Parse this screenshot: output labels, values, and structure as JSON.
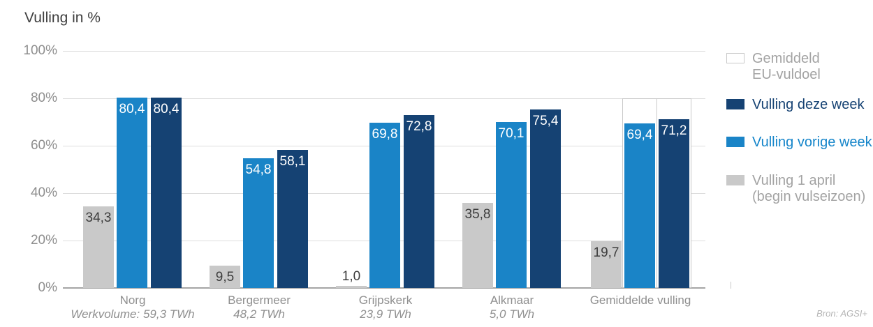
{
  "title": "Vulling in %",
  "source": "Bron: AGSI+",
  "colors": {
    "background": "#ffffff",
    "title_text": "#3f3f3f",
    "grid": "#dcdcdc",
    "baseline": "#a5a5a5",
    "axis_label": "#8e8e8e",
    "category_label": "#8f8f8f",
    "legend_gray_text": "#a3a3a3",
    "eu_goal_border": "#c9c9c9",
    "source_text": "#b5b5b5"
  },
  "legend": {
    "items": [
      {
        "id": "eu-goal",
        "label": "Gemiddeld EU-vuldoel",
        "label_lines": [
          "Gemiddeld",
          "EU-vuldoel"
        ],
        "swatch": "outline",
        "swatch_border": "#c9c9c9",
        "text_color": "#a3a3a3"
      },
      {
        "id": "deze-week",
        "label": "Vulling deze week",
        "label_lines": [
          "Vulling deze week"
        ],
        "swatch": "#154273",
        "text_color": "#154273"
      },
      {
        "id": "vorige-week",
        "label": "Vulling vorige week",
        "label_lines": [
          "Vulling vorige week"
        ],
        "swatch": "#1a84c7",
        "text_color": "#1585ca"
      },
      {
        "id": "april",
        "label": "Vulling 1 april (begin vulseizoen)",
        "label_lines": [
          "Vulling 1 april",
          "(begin vulseizoen)"
        ],
        "swatch": "#c9c9c9",
        "text_color": "#a3a3a3"
      }
    ]
  },
  "chart_data": {
    "type": "bar",
    "title": "Vulling in %",
    "ylabel": "Vulling in %",
    "xlabel": "",
    "ylim": [
      0,
      100
    ],
    "yticks": [
      {
        "label": "0%",
        "value": 0
      },
      {
        "label": "20%",
        "value": 20
      },
      {
        "label": "40%",
        "value": 40
      },
      {
        "label": "60%",
        "value": 60
      },
      {
        "label": "80%",
        "value": 80
      },
      {
        "label": "100%",
        "value": 100
      }
    ],
    "grid": true,
    "legend_position": "right",
    "categories": [
      "Norg",
      "Bergermeer",
      "Grijpskerk",
      "Alkmaar",
      "Gemiddelde vulling"
    ],
    "category_subtitles": [
      "Werkvolume: 59,3 TWh",
      "48,2 TWh",
      "23,9 TWh",
      "5,0 TWh",
      ""
    ],
    "series": [
      {
        "id": "april",
        "name": "Vulling 1 april (begin vulseizoen)",
        "color": "#c9c9c9",
        "label_color": "#3d3d3d",
        "values": [
          34.3,
          9.5,
          1.0,
          35.8,
          19.7
        ],
        "labels": [
          "34,3",
          "9,5",
          "1,0",
          "35,8",
          "19,7"
        ]
      },
      {
        "id": "vorige-week",
        "name": "Vulling vorige week",
        "color": "#1a84c7",
        "label_color": "#ffffff",
        "values": [
          80.4,
          54.8,
          69.8,
          70.1,
          69.4
        ],
        "labels": [
          "80,4",
          "54,8",
          "69,8",
          "70,1",
          "69,4"
        ]
      },
      {
        "id": "deze-week",
        "name": "Vulling deze week",
        "color": "#154273",
        "label_color": "#ffffff",
        "values": [
          80.4,
          58.1,
          72.8,
          75.4,
          71.2
        ],
        "labels": [
          "80,4",
          "58,1",
          "72,8",
          "75,4",
          "71,2"
        ]
      }
    ],
    "eu_goal": {
      "label": "Gemiddeld EU-vuldoel",
      "value": 80,
      "applies_to_category": "Gemiddelde vulling",
      "applies_to_series": [
        "Vulling vorige week",
        "Vulling deze week"
      ]
    }
  }
}
